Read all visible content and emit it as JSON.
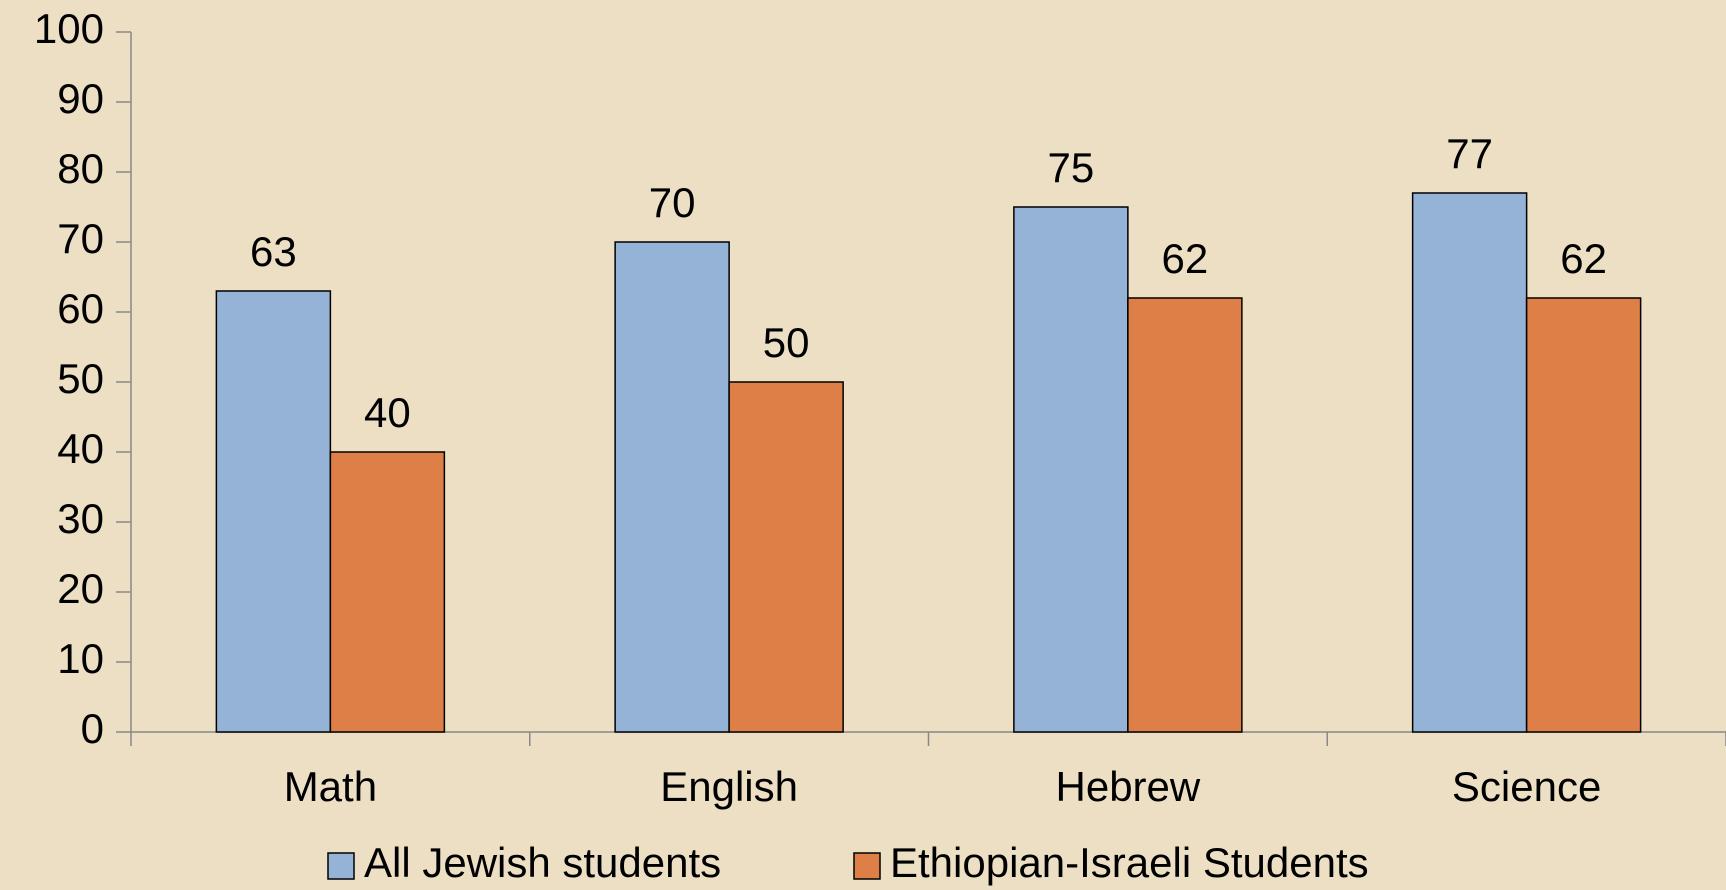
{
  "chart_data": {
    "type": "bar",
    "categories": [
      "Math",
      "English",
      "Hebrew",
      "Science"
    ],
    "series": [
      {
        "name": "All Jewish students",
        "color": "#95b3d7",
        "values": [
          63,
          70,
          75,
          77
        ]
      },
      {
        "name": "Ethiopian-Israeli Students",
        "color": "#dd7f47",
        "values": [
          40,
          50,
          62,
          62
        ]
      }
    ],
    "ylim": [
      0,
      100
    ],
    "yticks": [
      0,
      10,
      20,
      30,
      40,
      50,
      60,
      70,
      80,
      90,
      100
    ],
    "grid": false,
    "legend": "bottom"
  }
}
